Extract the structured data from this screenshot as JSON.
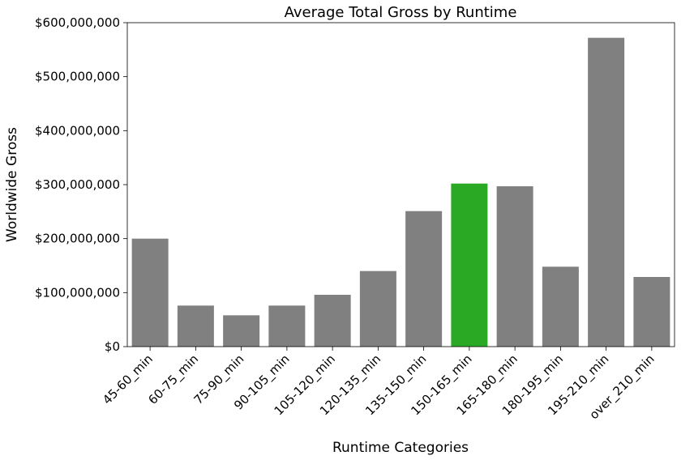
{
  "chart_data": {
    "type": "bar",
    "title": "Average Total Gross by Runtime",
    "xlabel": "Runtime Categories",
    "ylabel": "Worldwide Gross",
    "categories": [
      "45-60_min",
      "60-75_min",
      "75-90_min",
      "90-105_min",
      "105-120_min",
      "120-135_min",
      "135-150_min",
      "150-165_min",
      "165-180_min",
      "180-195_min",
      "195-210_min",
      "over_210_min"
    ],
    "values": [
      200000000,
      76000000,
      58000000,
      76000000,
      96000000,
      140000000,
      251000000,
      302000000,
      297000000,
      148000000,
      572000000,
      129000000
    ],
    "ylim": [
      0,
      600000000
    ],
    "yticks": [
      0,
      100000000,
      200000000,
      300000000,
      400000000,
      500000000,
      600000000
    ],
    "ytick_labels": [
      "$0",
      "$100,000,000",
      "$200,000,000",
      "$300,000,000",
      "$400,000,000",
      "$500,000,000",
      "$600,000,000"
    ],
    "grid": false,
    "bar_color": "#808080",
    "highlight_color": "#2aaa24",
    "highlight_index": 7
  }
}
